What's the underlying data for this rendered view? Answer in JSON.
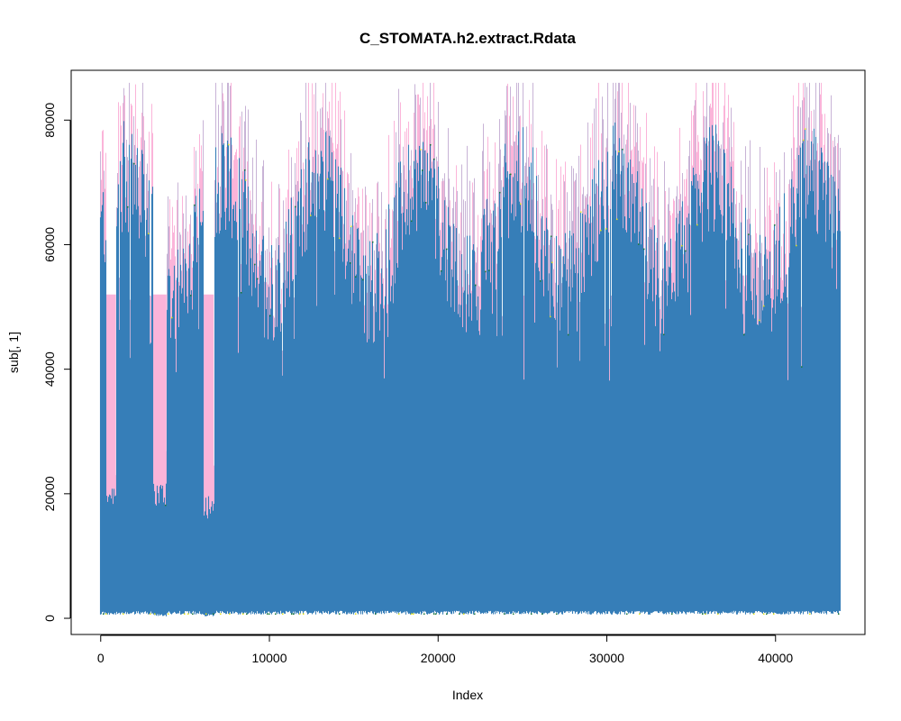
{
  "chart_data": {
    "type": "line",
    "title": "C_STOMATA.h2.extract.Rdata",
    "xlabel": "Index",
    "ylabel": "sub[, 1]",
    "xlim": [
      0,
      44000
    ],
    "ylim": [
      0,
      86000
    ],
    "x_ticks": [
      0,
      10000,
      20000,
      30000,
      40000
    ],
    "x_tick_labels": [
      "0",
      "10000",
      "20000",
      "30000",
      "40000"
    ],
    "y_ticks": [
      0,
      20000,
      40000,
      60000,
      80000
    ],
    "y_tick_labels": [
      "0",
      "20000",
      "40000",
      "60000",
      "80000"
    ],
    "grid": false,
    "legend": "none",
    "series_colors": [
      "#377eb8",
      "#fbb4d9",
      "#c8b3d6",
      "#1b7837",
      "#e6e619"
    ],
    "x_range": [
      0,
      43800
    ],
    "dips": [
      {
        "x": [
          300,
          900
        ],
        "upper": 18000,
        "lower": 500
      },
      {
        "x": [
          3100,
          3900
        ],
        "upper": 18000,
        "lower": 300
      },
      {
        "x": [
          6100,
          6700
        ],
        "upper": 16000,
        "lower": 300
      }
    ],
    "envelope": {
      "upper_typical": 70000,
      "upper_peak": 86000,
      "lower_baseline": 1200
    }
  }
}
